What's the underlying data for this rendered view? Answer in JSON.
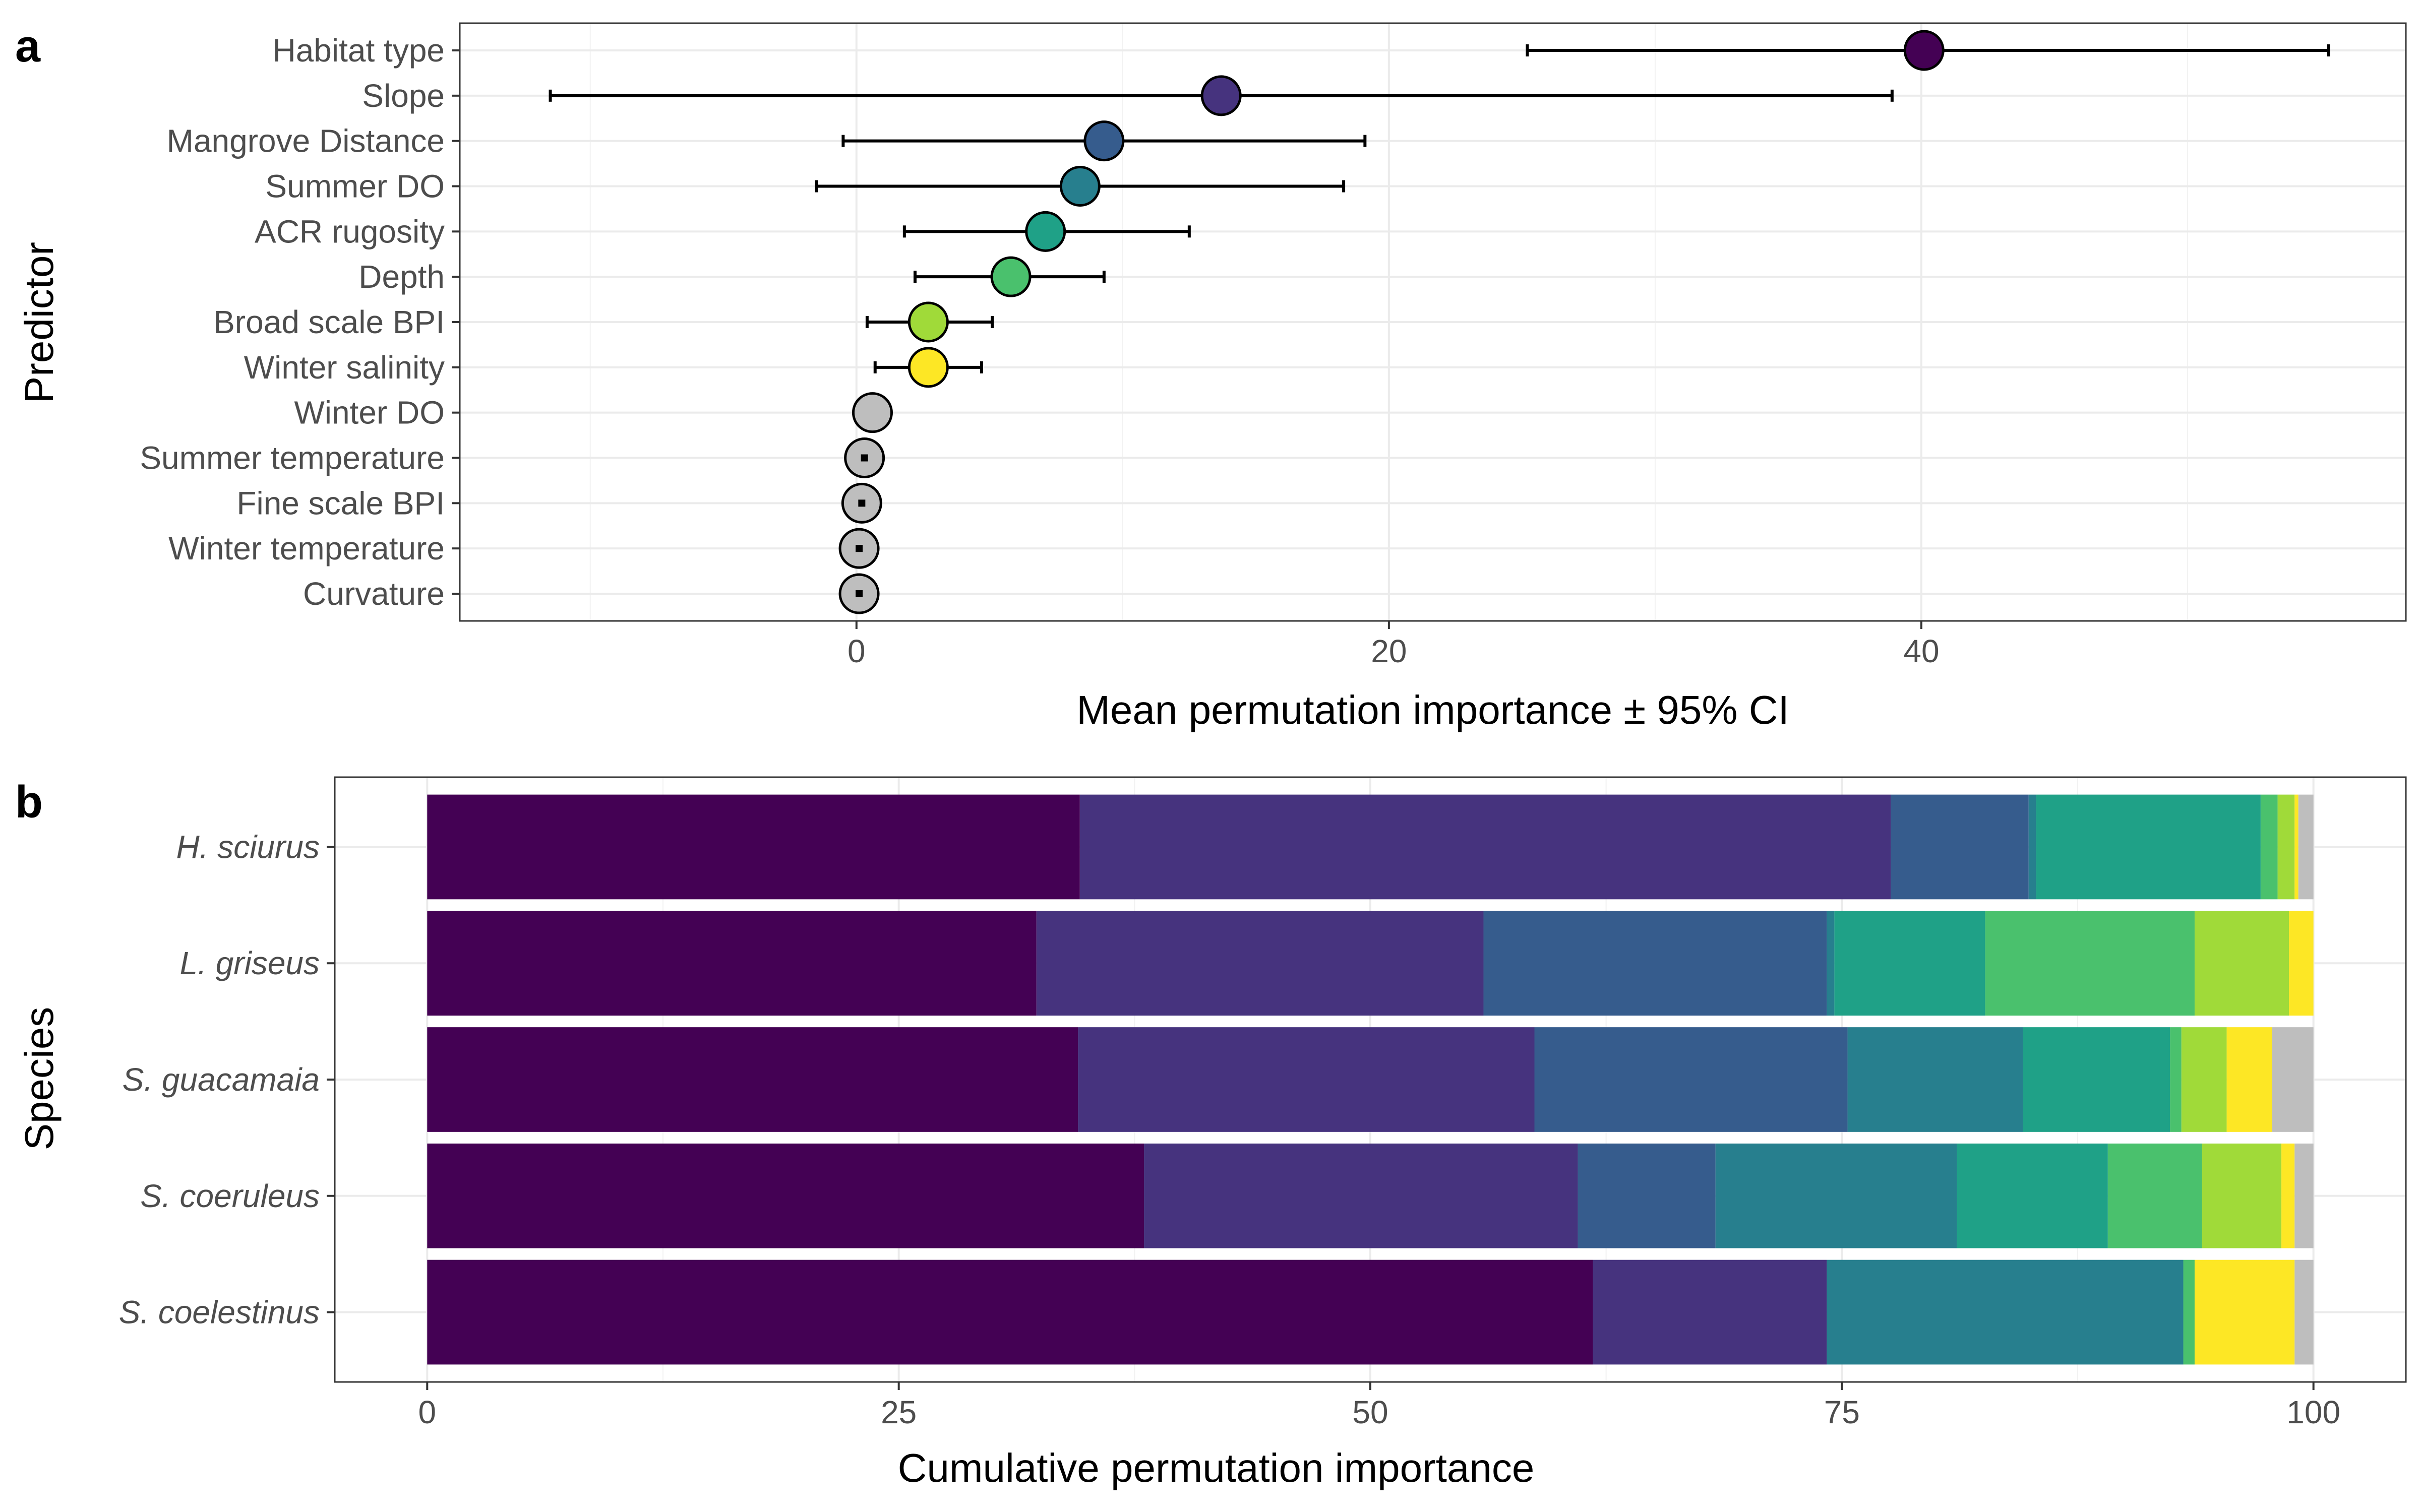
{
  "panel_a_label": "a",
  "panel_b_label": "b",
  "chart_data": [
    {
      "type": "scatter",
      "panel": "a",
      "xlabel": "Mean permutation importance ± 95% CI",
      "ylabel": "Predictor",
      "xlim": [
        -14.9,
        58.2
      ],
      "xticks": [
        0,
        20,
        40
      ],
      "grid": true,
      "points": [
        {
          "label": "Habitat type",
          "x": 40.1,
          "lo": 25.2,
          "hi": 55.3,
          "color": "#440154"
        },
        {
          "label": "Slope",
          "x": 13.7,
          "lo": -11.5,
          "hi": 38.9,
          "color": "#46337e"
        },
        {
          "label": "Mangrove Distance",
          "x": 9.3,
          "lo": -0.5,
          "hi": 19.1,
          "color": "#365c8d"
        },
        {
          "label": "Summer DO",
          "x": 8.4,
          "lo": -1.5,
          "hi": 18.3,
          "color": "#277f8e"
        },
        {
          "label": "ACR rugosity",
          "x": 7.1,
          "lo": 1.8,
          "hi": 12.5,
          "color": "#1fa187"
        },
        {
          "label": "Depth",
          "x": 5.8,
          "lo": 2.2,
          "hi": 9.3,
          "color": "#4ac16d"
        },
        {
          "label": "Broad scale BPI",
          "x": 2.7,
          "lo": 0.4,
          "hi": 5.1,
          "color": "#a0da39"
        },
        {
          "label": "Winter salinity",
          "x": 2.7,
          "lo": 0.7,
          "hi": 4.7,
          "color": "#fde725"
        },
        {
          "label": "Winter DO",
          "x": 0.6,
          "lo": 0.0,
          "hi": 1.2,
          "color": "#bebebe"
        },
        {
          "label": "Summer temperature",
          "x": 0.3,
          "lo": 0.1,
          "hi": 0.5,
          "color": "#bebebe"
        },
        {
          "label": "Fine scale BPI",
          "x": 0.2,
          "lo": 0.1,
          "hi": 0.3,
          "color": "#bebebe"
        },
        {
          "label": "Winter temperature",
          "x": 0.1,
          "lo": 0.05,
          "hi": 0.15,
          "color": "#bebebe"
        },
        {
          "label": "Curvature",
          "x": 0.1,
          "lo": 0.05,
          "hi": 0.15,
          "color": "#bebebe"
        }
      ]
    },
    {
      "type": "bar",
      "panel": "b",
      "stacked": true,
      "orientation": "horizontal",
      "xlabel": "Cumulative permutation importance",
      "ylabel": "Species",
      "xlim": [
        -4.9,
        104.9
      ],
      "xticks": [
        0,
        25,
        50,
        75,
        100
      ],
      "grid": true,
      "series_colors": [
        "#440154",
        "#46337e",
        "#365c8d",
        "#277f8e",
        "#1fa187",
        "#4ac16d",
        "#a0da39",
        "#fde725",
        "#bebebe"
      ],
      "categories": [
        "H. sciurus",
        "L. griseus",
        "S. guacamaia",
        "S. coeruleus",
        "S. coelestinus"
      ],
      "stacks": [
        [
          34.6,
          43.0,
          7.3,
          0.4,
          11.9,
          0.9,
          0.9,
          0.2,
          0.8
        ],
        [
          32.3,
          23.7,
          18.2,
          0.4,
          8.0,
          11.1,
          5.0,
          1.3,
          0.0
        ],
        [
          34.5,
          24.2,
          16.6,
          9.3,
          7.8,
          0.6,
          2.4,
          2.4,
          2.2
        ],
        [
          38.0,
          23.0,
          7.3,
          12.8,
          8.0,
          5.0,
          4.2,
          0.7,
          1.0
        ],
        [
          61.8,
          12.4,
          0.0,
          18.9,
          0.0,
          0.6,
          0.0,
          5.3,
          1.0
        ]
      ]
    }
  ]
}
